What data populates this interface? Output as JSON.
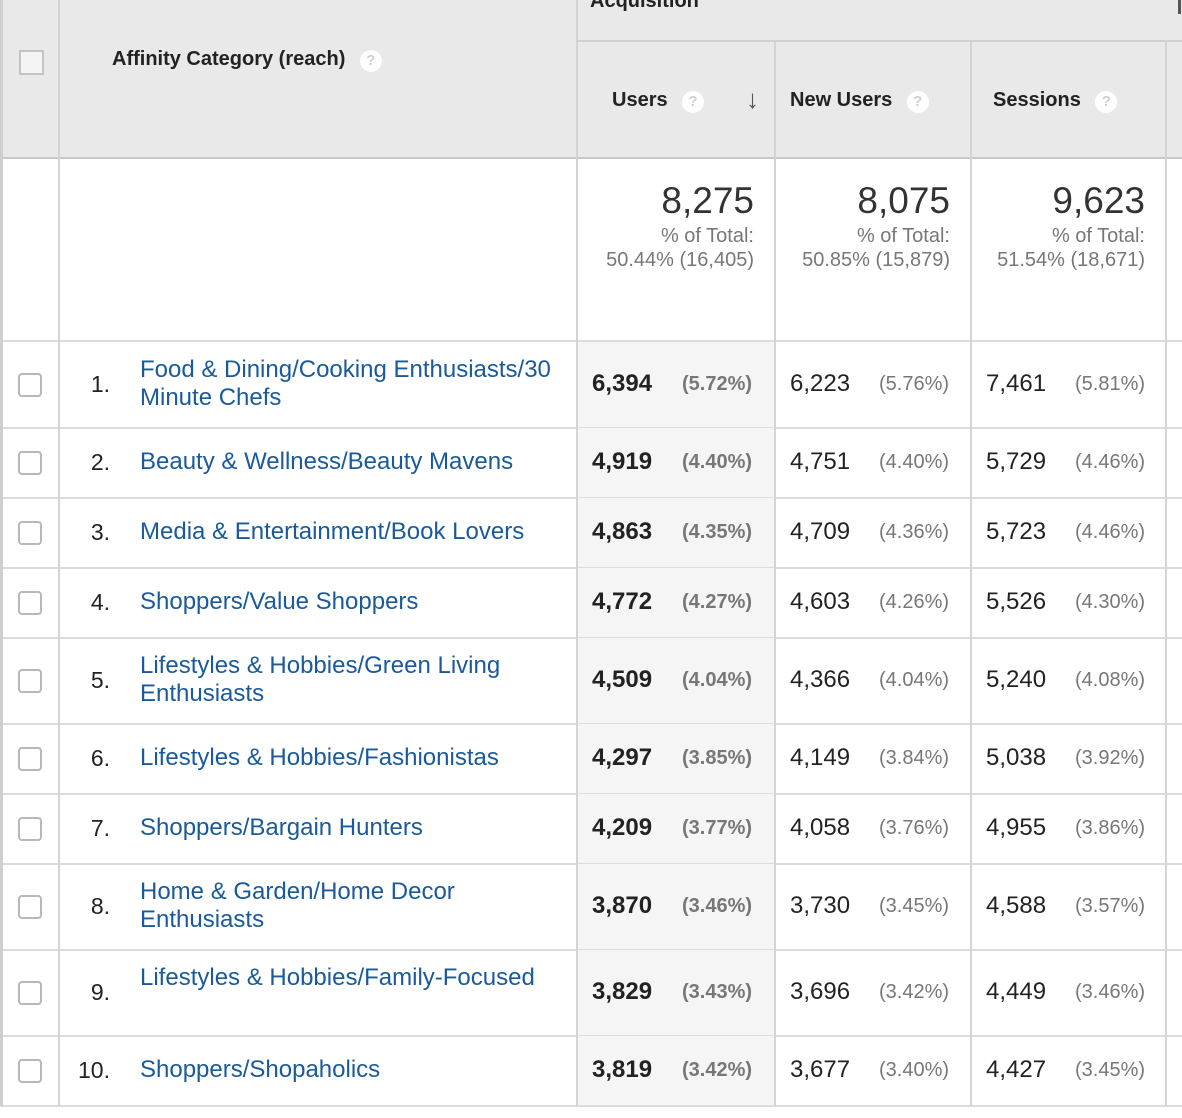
{
  "header": {
    "group_label": "Acquisition",
    "dimension_label": "Affinity Category (reach)",
    "columns": {
      "users": "Users",
      "new_users": "New Users",
      "sessions": "Sessions"
    },
    "help_glyph": "?",
    "sort_glyph": "↓"
  },
  "totals": {
    "users": {
      "value": "8,275",
      "label": "% of Total:",
      "detail": "50.44% (16,405)"
    },
    "new_users": {
      "value": "8,075",
      "label": "% of Total:",
      "detail": "50.85% (15,879)"
    },
    "sessions": {
      "value": "9,623",
      "label": "% of Total:",
      "detail": "51.54% (18,671)"
    }
  },
  "rows": [
    {
      "rank": "1.",
      "category": "Food & Dining/Cooking Enthusiasts/30 Minute Chefs",
      "users": "6,394",
      "users_pct": "(5.72%)",
      "new_users": "6,223",
      "new_users_pct": "(5.76%)",
      "sessions": "7,461",
      "sessions_pct": "(5.81%)"
    },
    {
      "rank": "2.",
      "category": "Beauty & Wellness/Beauty Mavens",
      "users": "4,919",
      "users_pct": "(4.40%)",
      "new_users": "4,751",
      "new_users_pct": "(4.40%)",
      "sessions": "5,729",
      "sessions_pct": "(4.46%)"
    },
    {
      "rank": "3.",
      "category": "Media & Entertainment/Book Lovers",
      "users": "4,863",
      "users_pct": "(4.35%)",
      "new_users": "4,709",
      "new_users_pct": "(4.36%)",
      "sessions": "5,723",
      "sessions_pct": "(4.46%)"
    },
    {
      "rank": "4.",
      "category": "Shoppers/Value Shoppers",
      "users": "4,772",
      "users_pct": "(4.27%)",
      "new_users": "4,603",
      "new_users_pct": "(4.26%)",
      "sessions": "5,526",
      "sessions_pct": "(4.30%)"
    },
    {
      "rank": "5.",
      "category": "Lifestyles & Hobbies/Green Living Enthusiasts",
      "users": "4,509",
      "users_pct": "(4.04%)",
      "new_users": "4,366",
      "new_users_pct": "(4.04%)",
      "sessions": "5,240",
      "sessions_pct": "(4.08%)"
    },
    {
      "rank": "6.",
      "category": "Lifestyles & Hobbies/Fashionistas",
      "users": "4,297",
      "users_pct": "(3.85%)",
      "new_users": "4,149",
      "new_users_pct": "(3.84%)",
      "sessions": "5,038",
      "sessions_pct": "(3.92%)"
    },
    {
      "rank": "7.",
      "category": "Shoppers/Bargain Hunters",
      "users": "4,209",
      "users_pct": "(3.77%)",
      "new_users": "4,058",
      "new_users_pct": "(3.76%)",
      "sessions": "4,955",
      "sessions_pct": "(3.86%)"
    },
    {
      "rank": "8.",
      "category": "Home & Garden/Home Decor Enthusiasts",
      "users": "3,870",
      "users_pct": "(3.46%)",
      "new_users": "3,730",
      "new_users_pct": "(3.45%)",
      "sessions": "4,588",
      "sessions_pct": "(3.57%)"
    },
    {
      "rank": "9.",
      "category": "Lifestyles & Hobbies/Family-Focused",
      "users": "3,829",
      "users_pct": "(3.43%)",
      "new_users": "3,696",
      "new_users_pct": "(3.42%)",
      "sessions": "4,449",
      "sessions_pct": "(3.46%)"
    },
    {
      "rank": "10.",
      "category": "Shoppers/Shopaholics",
      "users": "3,819",
      "users_pct": "(3.42%)",
      "new_users": "3,677",
      "new_users_pct": "(3.40%)",
      "sessions": "4,427",
      "sessions_pct": "(3.45%)"
    }
  ]
}
